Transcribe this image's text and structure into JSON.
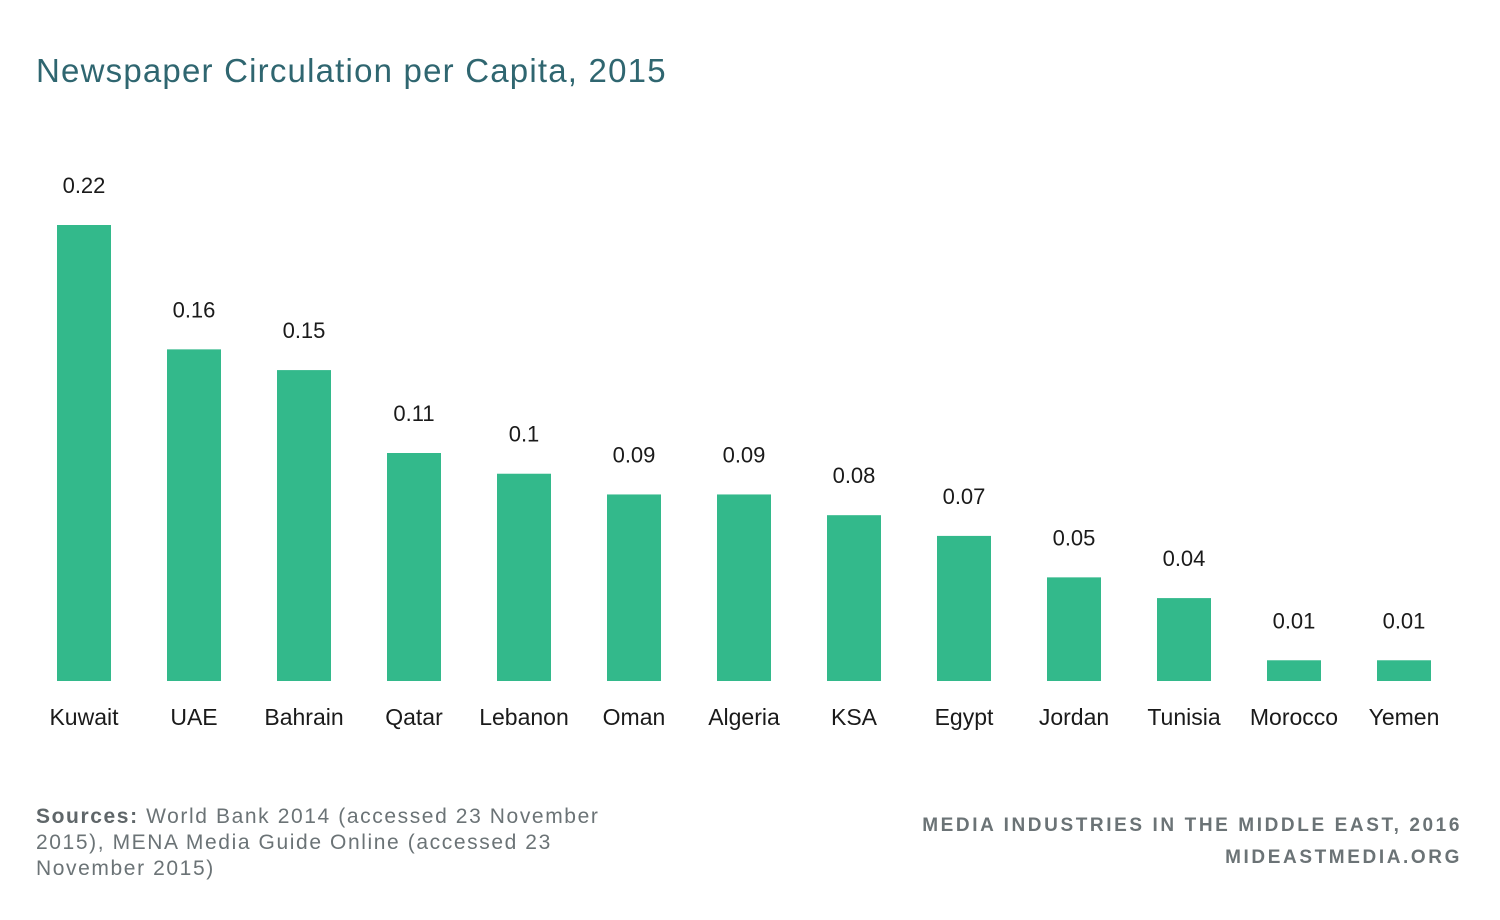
{
  "title": "Newspaper Circulation per Capita, 2015",
  "colors": {
    "bar": "#33b98b",
    "title": "#2f6670",
    "text": "#1a1a1a",
    "footer": "#6b7376"
  },
  "chart_data": {
    "type": "bar",
    "title": "Newspaper Circulation per Capita, 2015",
    "xlabel": "",
    "ylabel": "",
    "categories": [
      "Kuwait",
      "UAE",
      "Bahrain",
      "Qatar",
      "Lebanon",
      "Oman",
      "Algeria",
      "KSA",
      "Egypt",
      "Jordan",
      "Tunisia",
      "Morocco",
      "Yemen"
    ],
    "values": [
      0.22,
      0.16,
      0.15,
      0.11,
      0.1,
      0.09,
      0.09,
      0.08,
      0.07,
      0.05,
      0.04,
      0.01,
      0.01
    ],
    "value_labels": [
      "0.22",
      "0.16",
      "0.15",
      "0.11",
      "0.1",
      "0.09",
      "0.09",
      "0.08",
      "0.07",
      "0.05",
      "0.04",
      "0.01",
      "0.01"
    ],
    "ylim": [
      0,
      0.22
    ],
    "grid": false,
    "legend": "none"
  },
  "footer": {
    "sources_label": "Sources:",
    "sources_text": " World Bank 2014 (accessed 23 November 2015), MENA Media Guide Online (accessed 23 November 2015)",
    "credit_line1": "MEDIA INDUSTRIES IN THE MIDDLE EAST, 2016",
    "credit_line2": "MIDEASTMEDIA.ORG"
  }
}
